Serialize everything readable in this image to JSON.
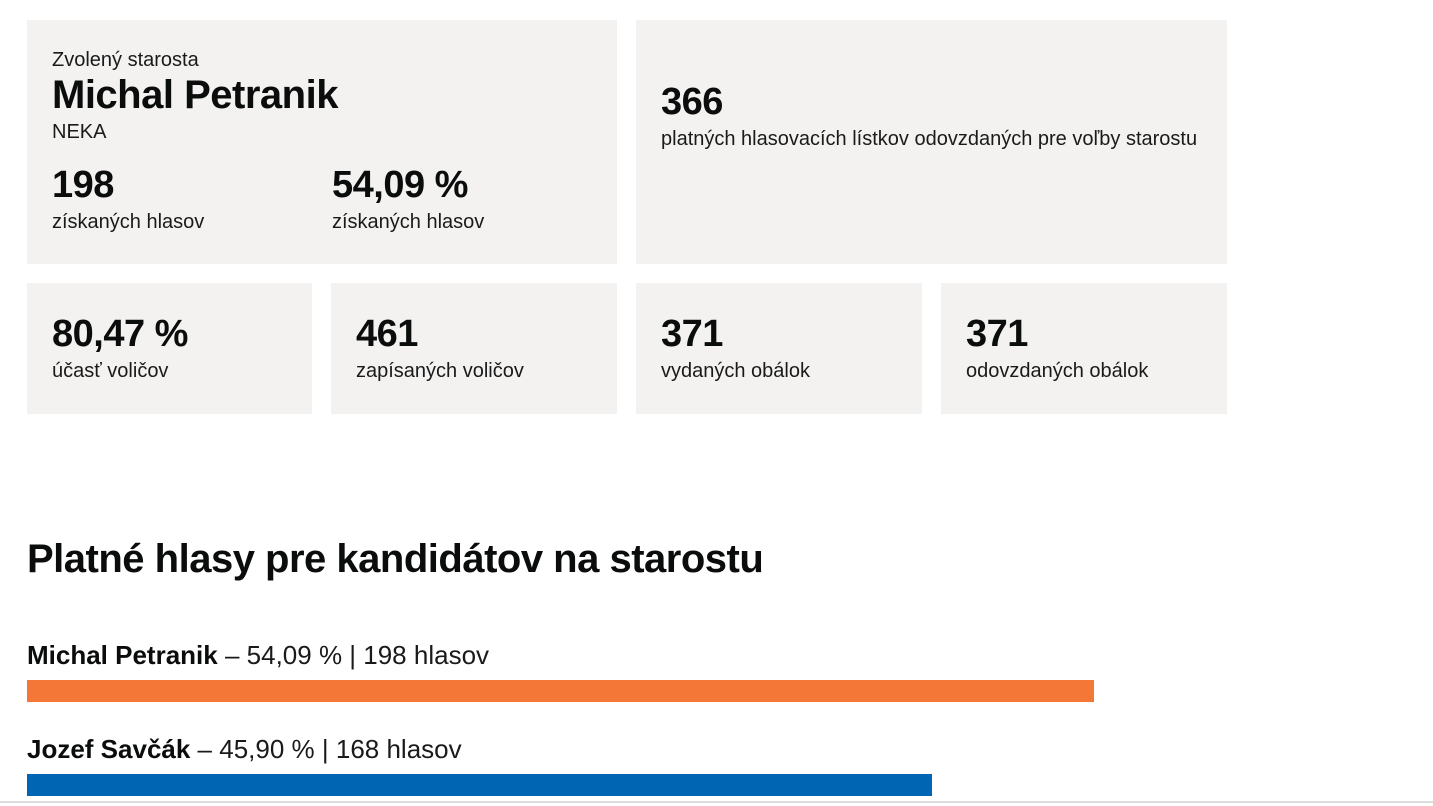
{
  "winner": {
    "label": "Zvolený starosta",
    "name": "Michal Petranik",
    "party": "NEKA",
    "votes": "198",
    "votes_label": "získaných hlasov",
    "percent": "54,09 %",
    "percent_label": "získaných hlasov"
  },
  "valid_ballots": {
    "value": "366",
    "label": "platných hlasovacích lístkov odovzdaných pre voľby starostu"
  },
  "stats": [
    {
      "value": "80,47 %",
      "label": "účasť voličov"
    },
    {
      "value": "461",
      "label": "zapísaných voličov"
    },
    {
      "value": "371",
      "label": "vydaných obálok"
    },
    {
      "value": "371",
      "label": "odovzdaných obálok"
    }
  ],
  "section": {
    "title": "Platné hlasy pre kandidátov na starostu"
  },
  "candidates": [
    {
      "name": "Michal Petranik",
      "separator": " – ",
      "percent": "54,09 %",
      "pipe": " | ",
      "votes": "198 hlasov",
      "bar_percent": 54.09,
      "color": "#f47738"
    },
    {
      "name": "Jozef Savčák",
      "separator": " – ",
      "percent": "45,90 %",
      "pipe": " | ",
      "votes": "168 hlasov",
      "bar_percent": 45.9,
      "color": "#0066b3"
    }
  ],
  "colors": {
    "card_bg": "#f3f2f1",
    "candidate_1": "#f47738",
    "candidate_2": "#0066b3"
  }
}
